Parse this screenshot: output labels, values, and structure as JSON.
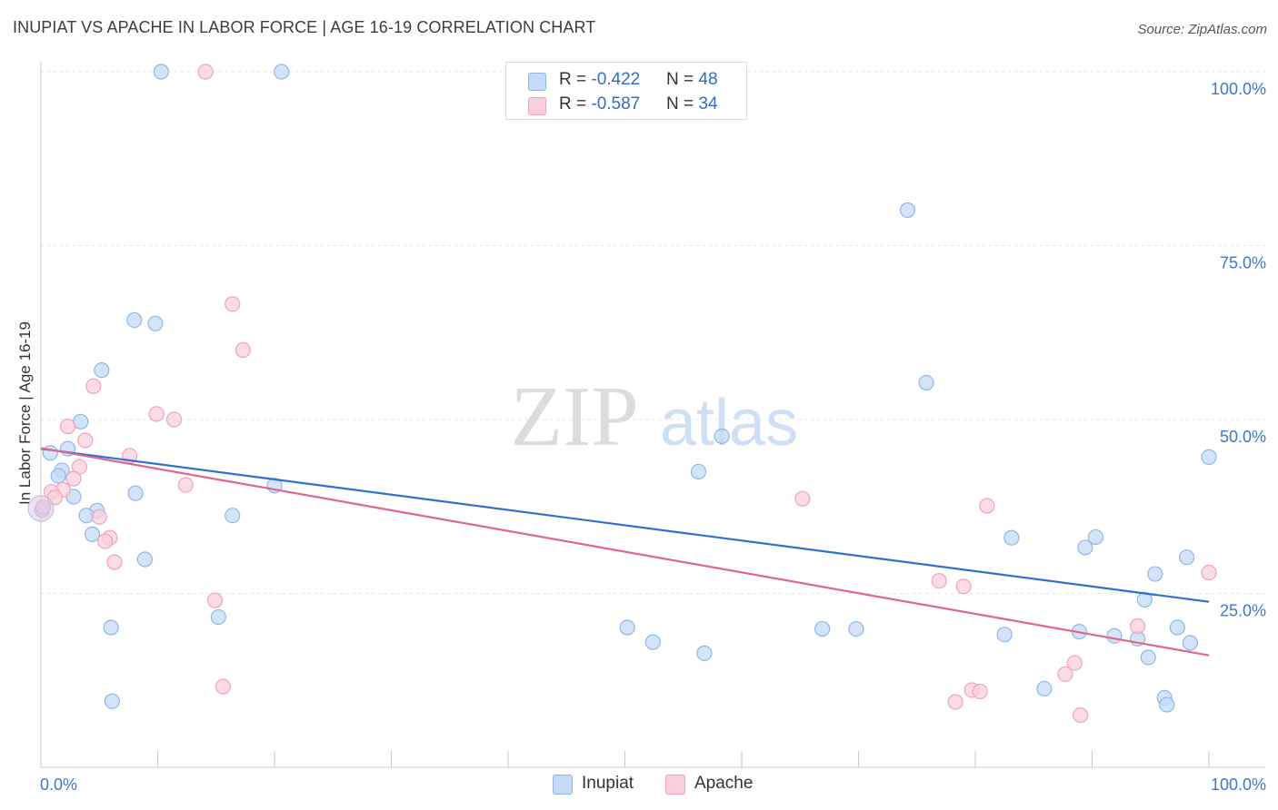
{
  "title": "INUPIAT VS APACHE IN LABOR FORCE | AGE 16-19 CORRELATION CHART",
  "source": "Source: ZipAtlas.com",
  "watermark": {
    "zip": "ZIP",
    "atlas": "atlas"
  },
  "legend": {
    "rows": [
      {
        "r_label": "R = ",
        "r_value": "-0.422",
        "n_label": "N = ",
        "n_value": "48"
      },
      {
        "r_label": "R = ",
        "r_value": "-0.587",
        "n_label": "N = ",
        "n_value": "34"
      }
    ]
  },
  "chart_data": {
    "type": "scatter",
    "title": "INUPIAT VS APACHE IN LABOR FORCE | AGE 16-19 CORRELATION CHART",
    "xlabel": "",
    "ylabel": "In Labor Force | Age 16-19",
    "xlim": [
      0,
      100
    ],
    "ylim": [
      0,
      100
    ],
    "x_tick_labels": [
      "0.0%",
      "100.0%"
    ],
    "y_ticks": [
      25,
      50,
      75,
      100
    ],
    "y_tick_labels": [
      "25.0%",
      "50.0%",
      "75.0%",
      "100.0%"
    ],
    "grid": true,
    "legend_position": "top-center",
    "series": [
      {
        "name": "Inupiat",
        "color": "#8db7ea",
        "fill": "#c5dbf5",
        "line_color": "#2f6fd0",
        "r": -0.422,
        "n": 48,
        "trend": {
          "x": [
            0,
            100
          ],
          "y": [
            45.8,
            23.8
          ]
        },
        "points": [
          [
            10.3,
            100
          ],
          [
            20.6,
            100
          ],
          [
            74.2,
            80.1
          ],
          [
            8.0,
            64.3
          ],
          [
            9.8,
            63.8
          ],
          [
            5.2,
            57.1
          ],
          [
            75.8,
            55.3
          ],
          [
            3.4,
            49.7
          ],
          [
            58.3,
            47.6
          ],
          [
            0.8,
            45.2
          ],
          [
            2.3,
            45.8
          ],
          [
            100,
            44.6
          ],
          [
            1.8,
            42.7
          ],
          [
            1.5,
            41.9
          ],
          [
            56.3,
            42.5
          ],
          [
            20.0,
            40.5
          ],
          [
            8.1,
            39.4
          ],
          [
            2.8,
            38.9
          ],
          [
            0.1,
            37.0
          ],
          [
            4.8,
            36.9
          ],
          [
            3.9,
            36.2
          ],
          [
            16.4,
            36.2
          ],
          [
            4.4,
            33.5
          ],
          [
            83.1,
            33.0
          ],
          [
            90.3,
            33.1
          ],
          [
            89.4,
            31.6
          ],
          [
            98.1,
            30.2
          ],
          [
            8.9,
            29.9
          ],
          [
            95.4,
            27.8
          ],
          [
            94.5,
            24.1
          ],
          [
            15.2,
            21.6
          ],
          [
            6.0,
            20.1
          ],
          [
            50.2,
            20.1
          ],
          [
            66.9,
            19.9
          ],
          [
            69.8,
            19.9
          ],
          [
            97.3,
            20.1
          ],
          [
            82.5,
            19.1
          ],
          [
            88.9,
            19.5
          ],
          [
            91.9,
            18.9
          ],
          [
            93.9,
            18.5
          ],
          [
            52.4,
            18.0
          ],
          [
            98.4,
            17.9
          ],
          [
            56.8,
            16.4
          ],
          [
            94.8,
            15.8
          ],
          [
            85.9,
            11.3
          ],
          [
            6.1,
            9.5
          ],
          [
            96.2,
            10.0
          ],
          [
            96.4,
            9.0
          ]
        ]
      },
      {
        "name": "Apache",
        "color": "#f0a3bb",
        "fill": "#f9cfdc",
        "line_color": "#e0668e",
        "r": -0.587,
        "n": 34,
        "trend": {
          "x": [
            0,
            100
          ],
          "y": [
            45.9,
            16.1
          ]
        },
        "points": [
          [
            14.1,
            100
          ],
          [
            16.4,
            66.6
          ],
          [
            17.3,
            60.0
          ],
          [
            4.5,
            54.8
          ],
          [
            9.9,
            50.8
          ],
          [
            11.4,
            50.0
          ],
          [
            2.3,
            49.0
          ],
          [
            3.8,
            47.0
          ],
          [
            7.6,
            44.8
          ],
          [
            3.3,
            43.2
          ],
          [
            2.8,
            41.5
          ],
          [
            12.4,
            40.6
          ],
          [
            1.9,
            39.9
          ],
          [
            0.9,
            39.6
          ],
          [
            1.2,
            38.8
          ],
          [
            0.2,
            37.4
          ],
          [
            65.2,
            38.6
          ],
          [
            81.0,
            37.6
          ],
          [
            5.0,
            36.0
          ],
          [
            5.9,
            33.0
          ],
          [
            5.5,
            32.5
          ],
          [
            6.3,
            29.5
          ],
          [
            100,
            28.0
          ],
          [
            76.9,
            26.8
          ],
          [
            79.0,
            26.0
          ],
          [
            14.9,
            24.0
          ],
          [
            93.9,
            20.3
          ],
          [
            88.5,
            15.0
          ],
          [
            87.7,
            13.4
          ],
          [
            15.6,
            11.6
          ],
          [
            79.7,
            11.1
          ],
          [
            80.4,
            10.9
          ],
          [
            78.3,
            9.4
          ],
          [
            89.0,
            7.5
          ]
        ]
      }
    ]
  }
}
